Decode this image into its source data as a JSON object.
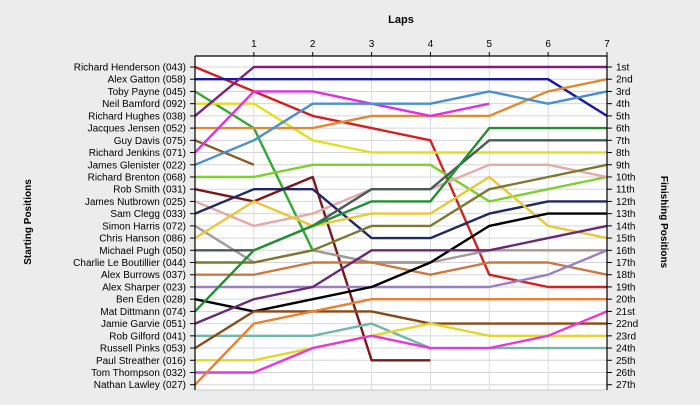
{
  "chart_data": {
    "type": "line",
    "title": "Laps",
    "ylabel_left": "Starting Positions",
    "ylabel_right": "Finishing Positions",
    "x": [
      0,
      1,
      2,
      3,
      4,
      5,
      6,
      7
    ],
    "x_tick_labels": [
      "1",
      "2",
      "3",
      "4",
      "5",
      "6",
      "7"
    ],
    "y_range": [
      1,
      27
    ],
    "y_inverted": true,
    "grid": true,
    "finish_labels": [
      "1st",
      "2nd",
      "3rd",
      "4th",
      "5th",
      "6th",
      "7th",
      "8th",
      "9th",
      "10th",
      "11th",
      "12th",
      "13th",
      "14th",
      "15th",
      "16th",
      "17th",
      "18th",
      "19th",
      "20th",
      "21st",
      "22nd",
      "23rd",
      "24th",
      "25th",
      "26th",
      "27th"
    ],
    "series": [
      {
        "name": "Richard Henderson (043)",
        "color": "#d42020",
        "values": [
          1,
          3,
          5,
          6,
          7,
          18,
          19,
          19
        ]
      },
      {
        "name": "Alex Gatton (058)",
        "color": "#1818a8",
        "values": [
          2,
          2,
          2,
          2,
          2,
          2,
          2,
          5
        ]
      },
      {
        "name": "Toby Payne (045)",
        "color": "#34a834",
        "values": [
          3,
          6,
          16,
          17,
          17,
          null,
          null,
          null
        ]
      },
      {
        "name": "Neil Bamford (092)",
        "color": "#e0e020",
        "values": [
          4,
          4,
          7,
          8,
          8,
          8,
          8,
          8
        ]
      },
      {
        "name": "Richard Hughes (038)",
        "color": "#80207e",
        "values": [
          5,
          1,
          1,
          1,
          1,
          1,
          1,
          1
        ]
      },
      {
        "name": "Jacques Jensen (052)",
        "color": "#e08a34",
        "values": [
          6,
          6,
          6,
          5,
          5,
          5,
          3,
          2
        ]
      },
      {
        "name": "Guy Davis (075)",
        "color": "#8a5a20",
        "values": [
          7,
          9,
          null,
          null,
          null,
          null,
          null,
          null
        ]
      },
      {
        "name": "Richard Jenkins (071)",
        "color": "#e030e0",
        "values": [
          8,
          3,
          3,
          4,
          5,
          4,
          null,
          null
        ]
      },
      {
        "name": "James Glenister (022)",
        "color": "#4a90d0",
        "values": [
          9,
          7,
          4,
          4,
          4,
          3,
          4,
          3
        ]
      },
      {
        "name": "Richard Brenton (068)",
        "color": "#7cd030",
        "values": [
          10,
          10,
          9,
          9,
          9,
          12,
          11,
          10
        ]
      },
      {
        "name": "Rob Smith (031)",
        "color": "#7a1818",
        "values": [
          11,
          12,
          10,
          25,
          25,
          null,
          null,
          null
        ]
      },
      {
        "name": "James Nutbrown (025)",
        "color": "#e8a8a8",
        "values": [
          12,
          14,
          13,
          11,
          11,
          9,
          9,
          10
        ]
      },
      {
        "name": "Sam Clegg (033)",
        "color": "#222866",
        "values": [
          13,
          11,
          11,
          15,
          15,
          13,
          12,
          12
        ]
      },
      {
        "name": "Simon Harris (072)",
        "color": "#a89898",
        "values": [
          14,
          17,
          16,
          17,
          17,
          16,
          16,
          16
        ]
      },
      {
        "name": "Chris Hanson (086)",
        "color": "#e8c838",
        "values": [
          15,
          12,
          14,
          13,
          13,
          10,
          14,
          15
        ]
      },
      {
        "name": "Michael Pugh (050)",
        "color": "#4a5a5a",
        "values": [
          16,
          16,
          14,
          11,
          11,
          7,
          7,
          7
        ]
      },
      {
        "name": "Charlie Le Boutillier (044)",
        "color": "#7a7a30",
        "values": [
          17,
          17,
          16,
          14,
          14,
          11,
          10,
          9
        ]
      },
      {
        "name": "Alex Burrows (037)",
        "color": "#c87a40",
        "values": [
          18,
          18,
          17,
          17,
          18,
          17,
          17,
          18
        ]
      },
      {
        "name": "Alex Sharper (023)",
        "color": "#9a80c0",
        "values": [
          19,
          19,
          19,
          19,
          19,
          19,
          18,
          16
        ]
      },
      {
        "name": "Ben Eden (028)",
        "color": "#000000",
        "values": [
          20,
          21,
          20,
          19,
          17,
          14,
          13,
          13
        ]
      },
      {
        "name": "Mat Dittmann (074)",
        "color": "#209030",
        "values": [
          21,
          16,
          14,
          12,
          12,
          6,
          6,
          6
        ]
      },
      {
        "name": "Jamie Garvie (051)",
        "color": "#6a2878",
        "values": [
          22,
          20,
          19,
          16,
          16,
          16,
          15,
          14
        ]
      },
      {
        "name": "Rob Gilford (041)",
        "color": "#70b8a8",
        "values": [
          23,
          23,
          23,
          22,
          24,
          24,
          24,
          24
        ]
      },
      {
        "name": "Russell Pinks (053)",
        "color": "#8a4a18",
        "values": [
          24,
          21,
          21,
          21,
          22,
          22,
          22,
          22
        ]
      },
      {
        "name": "Paul Streather (016)",
        "color": "#e0d830",
        "values": [
          25,
          25,
          24,
          23,
          22,
          23,
          23,
          23
        ]
      },
      {
        "name": "Tom Thompson (032)",
        "color": "#e838d8",
        "values": [
          26,
          26,
          24,
          23,
          24,
          24,
          23,
          21
        ]
      },
      {
        "name": "Nathan Lawley (027)",
        "color": "#e88030",
        "values": [
          27,
          22,
          21,
          20,
          20,
          20,
          20,
          20
        ]
      }
    ]
  }
}
